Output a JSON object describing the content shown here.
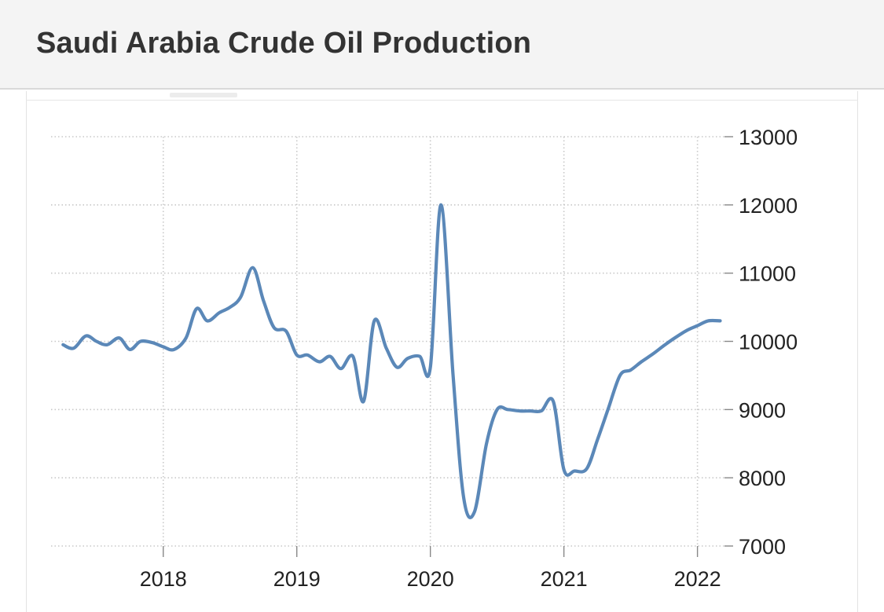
{
  "header": {
    "title": "Saudi Arabia Crude Oil Production"
  },
  "colors": {
    "line": "#5b88b8",
    "grid": "#c8c8c8",
    "text": "#222222",
    "header_bg": "#f4f4f4"
  },
  "chart_data": {
    "type": "line",
    "title": "Saudi Arabia Crude Oil Production",
    "xlabel": "",
    "ylabel": "",
    "y_axis_side": "right",
    "grid": true,
    "legend": "none",
    "ylim": [
      7000,
      13000
    ],
    "yticks": [
      "7000",
      "8000",
      "9000",
      "10000",
      "11000",
      "12000",
      "13000"
    ],
    "xticks": [
      "2018",
      "2019",
      "2020",
      "2021",
      "2022"
    ],
    "xlim": [
      2017.16,
      2022.22
    ],
    "series": [
      {
        "name": "",
        "x": [
          2017.25,
          2017.33,
          2017.42,
          2017.5,
          2017.58,
          2017.67,
          2017.75,
          2017.83,
          2017.92,
          2018.0,
          2018.08,
          2018.17,
          2018.25,
          2018.33,
          2018.42,
          2018.5,
          2018.58,
          2018.67,
          2018.75,
          2018.83,
          2018.92,
          2019.0,
          2019.08,
          2019.17,
          2019.25,
          2019.33,
          2019.42,
          2019.5,
          2019.58,
          2019.67,
          2019.75,
          2019.83,
          2019.92,
          2020.0,
          2020.08,
          2020.17,
          2020.25,
          2020.33,
          2020.42,
          2020.5,
          2020.58,
          2020.67,
          2020.75,
          2020.83,
          2020.92,
          2021.0,
          2021.08,
          2021.17,
          2021.25,
          2021.33,
          2021.42,
          2021.5,
          2021.58,
          2021.67,
          2021.75,
          2021.83,
          2021.92,
          2022.0,
          2022.08,
          2022.17
        ],
        "y": [
          9950,
          9900,
          10080,
          10000,
          9950,
          10050,
          9880,
          10000,
          9980,
          9920,
          9880,
          10050,
          10480,
          10300,
          10420,
          10500,
          10650,
          11080,
          10600,
          10200,
          10150,
          9800,
          9800,
          9700,
          9780,
          9600,
          9780,
          9120,
          10300,
          9900,
          9620,
          9750,
          9780,
          9620,
          12000,
          9500,
          7700,
          7500,
          8500,
          9000,
          9000,
          8980,
          8980,
          8980,
          9120,
          8120,
          8100,
          8130,
          8550,
          9000,
          9500,
          9580,
          9700,
          9820,
          9940,
          10050,
          10160,
          10230,
          10300,
          10300
        ]
      }
    ]
  }
}
